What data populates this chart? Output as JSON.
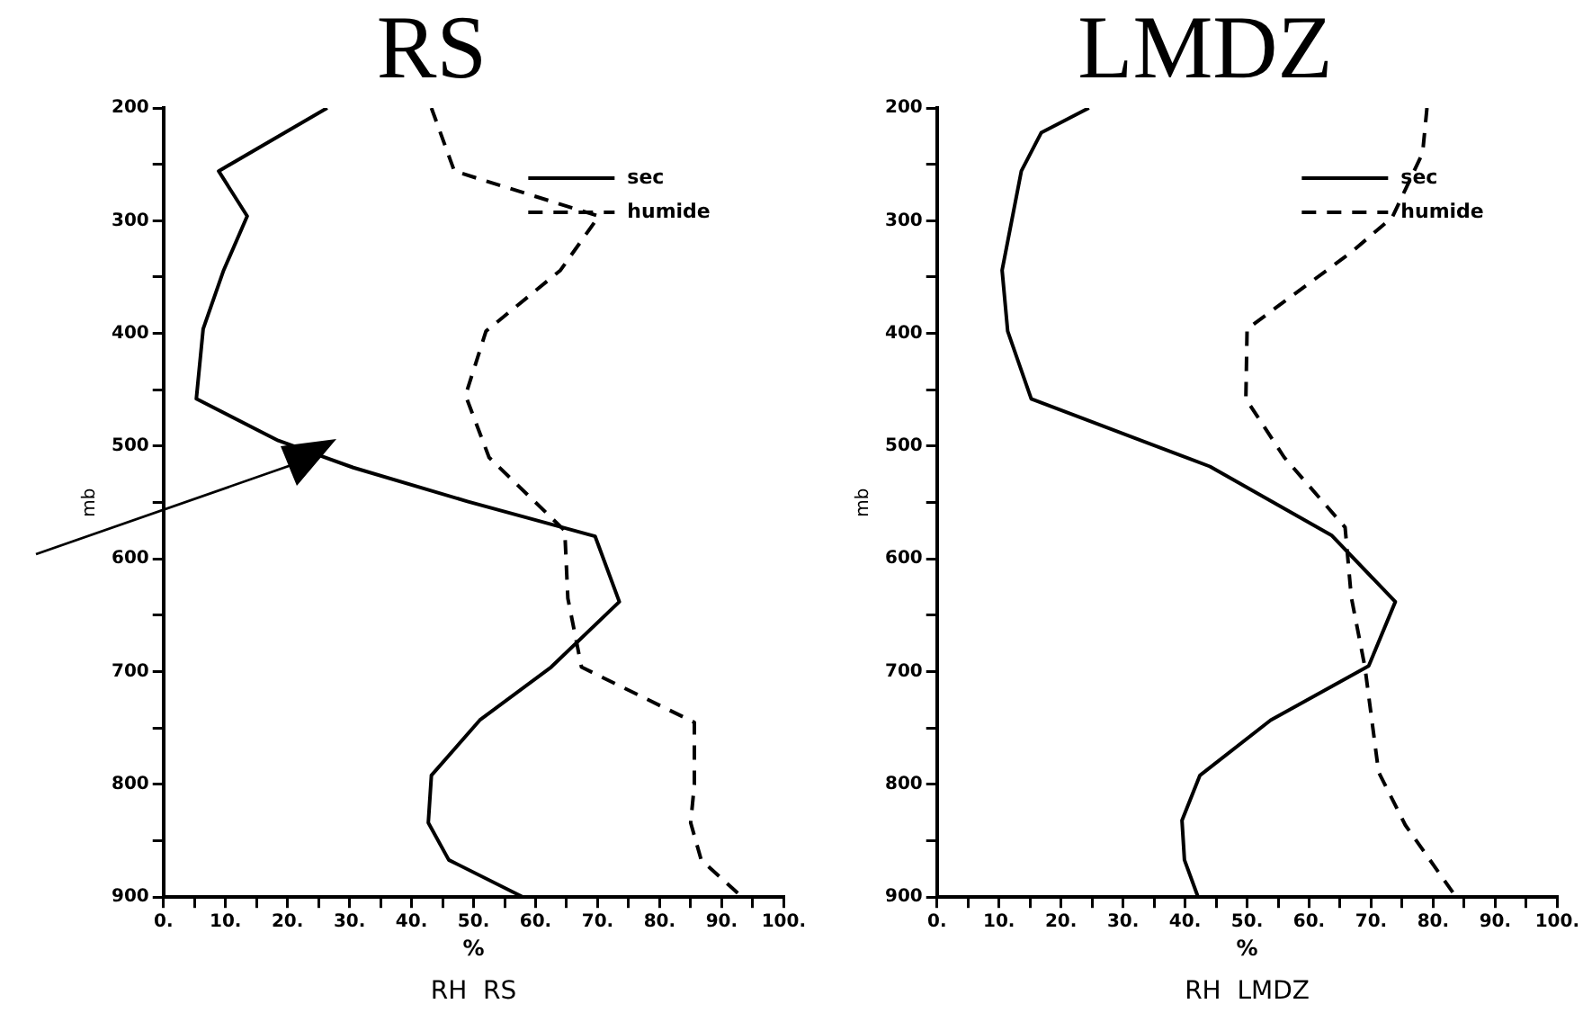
{
  "chart_data": [
    {
      "type": "line",
      "title": "RS",
      "xlabel": "%",
      "ylabel": "mb",
      "annotations": [
        "RH  RS"
      ],
      "legend": "top right",
      "marker": "none",
      "grid": false,
      "series": [
        {
          "name": "sec",
          "color": "#000000",
          "line_style": "solid",
          "x": [
            26.4,
            8.9,
            13.5,
            9.7,
            6.4,
            5.3,
            18.5,
            30.6,
            49,
            69.6,
            73.5,
            62.5,
            51,
            43.2,
            42.7,
            46,
            58
          ],
          "values": [
            200,
            256,
            296,
            344,
            396,
            458,
            495,
            519,
            549,
            580,
            638,
            696,
            743,
            792,
            834,
            867,
            900
          ]
        },
        {
          "name": "humide",
          "color": "#000000",
          "line_style": "dashed",
          "x": [
            43.2,
            46.9,
            70.2,
            64,
            52,
            48.7,
            52.5,
            64.7,
            65.2,
            67.4,
            85.6,
            85.6,
            85,
            86.7,
            93.3
          ],
          "values": [
            200,
            256,
            296,
            344,
            398,
            455,
            510,
            575,
            635,
            696,
            745,
            800,
            834,
            867,
            900
          ]
        }
      ],
      "xlim": [
        0,
        100
      ],
      "ylim": [
        900,
        200
      ],
      "xticks": [
        {
          "value": 0,
          "label": "0."
        },
        {
          "value": 5,
          "label": null
        },
        {
          "value": 10,
          "label": "10."
        },
        {
          "value": 15,
          "label": null
        },
        {
          "value": 20,
          "label": "20."
        },
        {
          "value": 25,
          "label": null
        },
        {
          "value": 30,
          "label": "30."
        },
        {
          "value": 35,
          "label": null
        },
        {
          "value": 40,
          "label": "40."
        },
        {
          "value": 45,
          "label": null
        },
        {
          "value": 50,
          "label": "50."
        },
        {
          "value": 55,
          "label": null
        },
        {
          "value": 60,
          "label": "60."
        },
        {
          "value": 65,
          "label": null
        },
        {
          "value": 70,
          "label": "70."
        },
        {
          "value": 75,
          "label": null
        },
        {
          "value": 80,
          "label": "80."
        },
        {
          "value": 85,
          "label": null
        },
        {
          "value": 90,
          "label": "90."
        },
        {
          "value": 95,
          "label": null
        },
        {
          "value": 100,
          "label": "100."
        }
      ],
      "yticks": [
        200,
        {
          "value": 250,
          "label": null
        },
        300,
        {
          "value": 350,
          "label": null
        },
        400,
        {
          "value": 450,
          "label": null
        },
        500,
        {
          "value": 550,
          "label": null
        },
        600,
        {
          "value": 650,
          "label": null
        },
        700,
        {
          "value": 750,
          "label": null
        },
        800,
        {
          "value": 850,
          "label": null
        },
        900
      ]
    },
    {
      "type": "line",
      "title": "LMDZ",
      "xlabel": "%",
      "ylabel": "mb",
      "annotations": [
        "RH  LMDZ"
      ],
      "legend": "top right",
      "marker": "none",
      "grid": false,
      "series": [
        {
          "name": "sec",
          "color": "#000000",
          "line_style": "solid",
          "x": [
            24.5,
            16.8,
            13.6,
            10.5,
            11.4,
            15.2,
            44,
            63.6,
            73.9,
            69.6,
            53.8,
            42.4,
            39.5,
            39.9,
            42.1
          ],
          "values": [
            200,
            222,
            256,
            344,
            398,
            458,
            518,
            579,
            638,
            695,
            743,
            792,
            832,
            867,
            900
          ]
        },
        {
          "name": "humide",
          "color": "#000000",
          "line_style": "dashed",
          "x": [
            79,
            78.3,
            73.4,
            66.8,
            50,
            49.8,
            56,
            65.8,
            66.8,
            69,
            71.2,
            75.5,
            83.7
          ],
          "values": [
            200,
            240,
            297,
            328,
            396,
            458,
            510,
            572,
            634,
            696,
            789,
            836,
            900
          ]
        }
      ],
      "xlim": [
        0,
        100
      ],
      "ylim": [
        900,
        200
      ],
      "xticks": [
        {
          "value": 0,
          "label": "0."
        },
        {
          "value": 5,
          "label": null
        },
        {
          "value": 10,
          "label": "10."
        },
        {
          "value": 15,
          "label": null
        },
        {
          "value": 20,
          "label": "20."
        },
        {
          "value": 25,
          "label": null
        },
        {
          "value": 30,
          "label": "30."
        },
        {
          "value": 35,
          "label": null
        },
        {
          "value": 40,
          "label": "40."
        },
        {
          "value": 45,
          "label": null
        },
        {
          "value": 50,
          "label": "50."
        },
        {
          "value": 55,
          "label": null
        },
        {
          "value": 60,
          "label": "60."
        },
        {
          "value": 65,
          "label": null
        },
        {
          "value": 70,
          "label": "70."
        },
        {
          "value": 75,
          "label": null
        },
        {
          "value": 80,
          "label": "80."
        },
        {
          "value": 85,
          "label": null
        },
        {
          "value": 90,
          "label": "90."
        },
        {
          "value": 95,
          "label": null
        },
        {
          "value": 100,
          "label": "100."
        }
      ],
      "yticks": [
        200,
        {
          "value": 250,
          "label": null
        },
        300,
        {
          "value": 350,
          "label": null
        },
        400,
        {
          "value": 450,
          "label": null
        },
        500,
        {
          "value": 550,
          "label": null
        },
        600,
        {
          "value": 650,
          "label": null
        },
        700,
        {
          "value": 750,
          "label": null
        },
        800,
        {
          "value": 850,
          "label": null
        },
        900
      ]
    }
  ]
}
